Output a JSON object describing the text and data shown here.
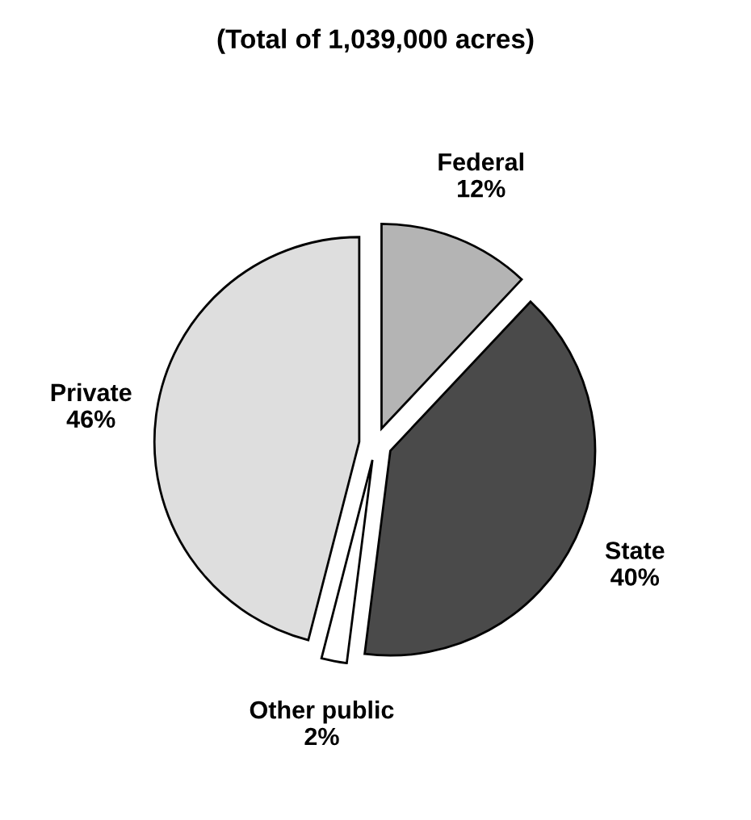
{
  "chart_data": {
    "type": "pie",
    "title": "(Total of 1,039,000 acres)",
    "categories": [
      "Federal",
      "State",
      "Other public",
      "Private"
    ],
    "values": [
      12,
      40,
      2,
      46
    ],
    "value_labels": [
      "12%",
      "40%",
      "2%",
      "46%"
    ],
    "colors": [
      "#b4b4b4",
      "#4a4a4a",
      "#ffffff",
      "#dedede"
    ]
  }
}
